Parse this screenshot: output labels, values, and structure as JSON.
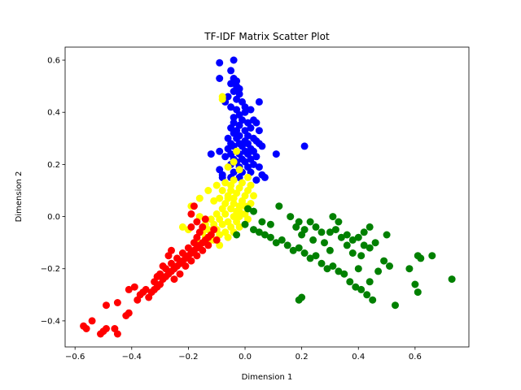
{
  "chart_data": {
    "type": "scatter",
    "title": "TF-IDF Matrix Scatter Plot",
    "xlabel": "Dimension 1",
    "ylabel": "Dimension 2",
    "xlim": [
      -0.635,
      0.79
    ],
    "ylim": [
      -0.5,
      0.65
    ],
    "xticks": [
      -0.6,
      -0.4,
      -0.2,
      0.0,
      0.2,
      0.4,
      0.6
    ],
    "xtick_labels": [
      "−0.6",
      "−0.4",
      "−0.2",
      "0.0",
      "0.2",
      "0.4",
      "0.6"
    ],
    "yticks": [
      -0.4,
      -0.2,
      0.0,
      0.2,
      0.4,
      0.6
    ],
    "ytick_labels": [
      "−0.4",
      "−0.2",
      "0.0",
      "0.2",
      "0.4",
      "0.6"
    ],
    "grid": false,
    "legend": "none",
    "series": [
      {
        "color": "#0000ff",
        "points": [
          [
            -0.09,
            0.59
          ],
          [
            -0.04,
            0.6
          ],
          [
            -0.09,
            0.53
          ],
          [
            -0.05,
            0.56
          ],
          [
            -0.04,
            0.53
          ],
          [
            -0.03,
            0.52
          ],
          [
            -0.05,
            0.51
          ],
          [
            -0.03,
            0.5
          ],
          [
            -0.04,
            0.48
          ],
          [
            -0.02,
            0.49
          ],
          [
            -0.06,
            0.46
          ],
          [
            -0.03,
            0.45
          ],
          [
            -0.02,
            0.47
          ],
          [
            -0.01,
            0.44
          ],
          [
            -0.07,
            0.44
          ],
          [
            -0.05,
            0.42
          ],
          [
            -0.03,
            0.41
          ],
          [
            0.0,
            0.42
          ],
          [
            -0.02,
            0.39
          ],
          [
            -0.04,
            0.38
          ],
          [
            0.05,
            0.44
          ],
          [
            0.0,
            0.4
          ],
          [
            -0.01,
            0.37
          ],
          [
            -0.04,
            0.36
          ],
          [
            -0.02,
            0.35
          ],
          [
            0.01,
            0.36
          ],
          [
            -0.05,
            0.34
          ],
          [
            -0.03,
            0.33
          ],
          [
            0.0,
            0.33
          ],
          [
            0.02,
            0.34
          ],
          [
            -0.04,
            0.32
          ],
          [
            -0.02,
            0.31
          ],
          [
            0.01,
            0.31
          ],
          [
            0.04,
            0.36
          ],
          [
            0.05,
            0.33
          ],
          [
            -0.06,
            0.3
          ],
          [
            -0.03,
            0.3
          ],
          [
            0.0,
            0.29
          ],
          [
            0.03,
            0.3
          ],
          [
            -0.05,
            0.28
          ],
          [
            -0.02,
            0.28
          ],
          [
            0.01,
            0.28
          ],
          [
            0.04,
            0.29
          ],
          [
            -0.04,
            0.27
          ],
          [
            -0.01,
            0.27
          ],
          [
            0.02,
            0.26
          ],
          [
            -0.06,
            0.26
          ],
          [
            -0.03,
            0.25
          ],
          [
            0.0,
            0.25
          ],
          [
            0.03,
            0.25
          ],
          [
            0.05,
            0.28
          ],
          [
            0.06,
            0.27
          ],
          [
            -0.05,
            0.24
          ],
          [
            -0.02,
            0.24
          ],
          [
            0.01,
            0.24
          ],
          [
            -0.07,
            0.23
          ],
          [
            -0.04,
            0.22
          ],
          [
            -0.01,
            0.22
          ],
          [
            0.02,
            0.22
          ],
          [
            0.04,
            0.23
          ],
          [
            -0.12,
            0.24
          ],
          [
            -0.09,
            0.25
          ],
          [
            -0.03,
            0.21
          ],
          [
            0.0,
            0.21
          ],
          [
            0.03,
            0.2
          ],
          [
            -0.05,
            0.2
          ],
          [
            -0.02,
            0.19
          ],
          [
            0.01,
            0.19
          ],
          [
            0.05,
            0.19
          ],
          [
            -0.09,
            0.18
          ],
          [
            -0.08,
            0.16
          ],
          [
            -0.04,
            0.17
          ],
          [
            -0.01,
            0.17
          ],
          [
            0.02,
            0.17
          ],
          [
            0.06,
            0.16
          ],
          [
            0.07,
            0.15
          ],
          [
            -0.08,
            0.15
          ],
          [
            -0.05,
            0.15
          ],
          [
            -0.02,
            0.15
          ],
          [
            0.04,
            0.14
          ],
          [
            0.11,
            0.24
          ],
          [
            0.21,
            0.27
          ],
          [
            0.03,
            0.37
          ],
          [
            0.02,
            0.41
          ]
        ]
      },
      {
        "color": "#ffff00",
        "points": [
          [
            -0.08,
            0.45
          ],
          [
            -0.08,
            0.46
          ],
          [
            -0.03,
            0.25
          ],
          [
            -0.04,
            0.21
          ],
          [
            -0.06,
            0.19
          ],
          [
            -0.02,
            0.18
          ],
          [
            0.01,
            0.15
          ],
          [
            -0.04,
            0.14
          ],
          [
            -0.07,
            0.13
          ],
          [
            -0.01,
            0.13
          ],
          [
            0.02,
            0.12
          ],
          [
            -0.05,
            0.12
          ],
          [
            -0.1,
            0.12
          ],
          [
            -0.02,
            0.11
          ],
          [
            0.01,
            0.1
          ],
          [
            -0.05,
            0.1
          ],
          [
            -0.08,
            0.1
          ],
          [
            -0.13,
            0.1
          ],
          [
            -0.03,
            0.09
          ],
          [
            0.0,
            0.08
          ],
          [
            -0.06,
            0.08
          ],
          [
            0.03,
            0.08
          ],
          [
            -0.09,
            0.07
          ],
          [
            -0.04,
            0.07
          ],
          [
            -0.01,
            0.06
          ],
          [
            0.02,
            0.05
          ],
          [
            -0.07,
            0.05
          ],
          [
            -0.11,
            0.06
          ],
          [
            -0.04,
            0.05
          ],
          [
            -0.02,
            0.04
          ],
          [
            0.01,
            0.03
          ],
          [
            -0.08,
            0.03
          ],
          [
            -0.05,
            0.03
          ],
          [
            -0.03,
            0.02
          ],
          [
            0.0,
            0.01
          ],
          [
            -0.1,
            0.01
          ],
          [
            -0.07,
            0.01
          ],
          [
            -0.04,
            0.0
          ],
          [
            -0.02,
            0.0
          ],
          [
            0.01,
            -0.01
          ],
          [
            -0.12,
            -0.01
          ],
          [
            -0.09,
            -0.01
          ],
          [
            -0.06,
            -0.02
          ],
          [
            -0.03,
            -0.02
          ],
          [
            -0.14,
            -0.03
          ],
          [
            -0.11,
            -0.03
          ],
          [
            -0.08,
            -0.03
          ],
          [
            -0.05,
            -0.04
          ],
          [
            -0.02,
            -0.04
          ],
          [
            -0.13,
            -0.05
          ],
          [
            -0.1,
            -0.05
          ],
          [
            -0.07,
            -0.06
          ],
          [
            -0.04,
            -0.06
          ],
          [
            -0.15,
            -0.06
          ],
          [
            -0.12,
            -0.07
          ],
          [
            -0.09,
            -0.07
          ],
          [
            -0.06,
            -0.08
          ],
          [
            -0.14,
            -0.08
          ],
          [
            -0.11,
            -0.09
          ],
          [
            -0.17,
            -0.09
          ],
          [
            -0.13,
            -0.1
          ],
          [
            -0.09,
            -0.11
          ],
          [
            -0.16,
            -0.11
          ],
          [
            -0.15,
            -0.05
          ],
          [
            -0.16,
            0.07
          ],
          [
            -0.19,
            0.04
          ],
          [
            -0.2,
            -0.05
          ],
          [
            -0.22,
            -0.04
          ],
          [
            -0.16,
            0.0
          ],
          [
            -0.06,
            0.07
          ],
          [
            -0.02,
            0.02
          ],
          [
            0.0,
            0.04
          ]
        ]
      },
      {
        "color": "#ff0000",
        "points": [
          [
            -0.57,
            -0.42
          ],
          [
            -0.56,
            -0.43
          ],
          [
            -0.54,
            -0.4
          ],
          [
            -0.51,
            -0.45
          ],
          [
            -0.5,
            -0.44
          ],
          [
            -0.49,
            -0.43
          ],
          [
            -0.46,
            -0.43
          ],
          [
            -0.45,
            -0.45
          ],
          [
            -0.49,
            -0.34
          ],
          [
            -0.45,
            -0.33
          ],
          [
            -0.42,
            -0.38
          ],
          [
            -0.41,
            -0.37
          ],
          [
            -0.41,
            -0.28
          ],
          [
            -0.39,
            -0.27
          ],
          [
            -0.38,
            -0.32
          ],
          [
            -0.37,
            -0.3
          ],
          [
            -0.36,
            -0.29
          ],
          [
            -0.34,
            -0.31
          ],
          [
            -0.33,
            -0.29
          ],
          [
            -0.32,
            -0.28
          ],
          [
            -0.31,
            -0.27
          ],
          [
            -0.3,
            -0.26
          ],
          [
            -0.32,
            -0.25
          ],
          [
            -0.29,
            -0.24
          ],
          [
            -0.28,
            -0.23
          ],
          [
            -0.3,
            -0.22
          ],
          [
            -0.27,
            -0.22
          ],
          [
            -0.26,
            -0.21
          ],
          [
            -0.28,
            -0.2
          ],
          [
            -0.25,
            -0.2
          ],
          [
            -0.24,
            -0.19
          ],
          [
            -0.26,
            -0.18
          ],
          [
            -0.23,
            -0.18
          ],
          [
            -0.22,
            -0.17
          ],
          [
            -0.24,
            -0.16
          ],
          [
            -0.21,
            -0.16
          ],
          [
            -0.2,
            -0.15
          ],
          [
            -0.22,
            -0.14
          ],
          [
            -0.19,
            -0.14
          ],
          [
            -0.18,
            -0.13
          ],
          [
            -0.2,
            -0.12
          ],
          [
            -0.17,
            -0.12
          ],
          [
            -0.16,
            -0.11
          ],
          [
            -0.18,
            -0.1
          ],
          [
            -0.15,
            -0.1
          ],
          [
            -0.14,
            -0.09
          ],
          [
            -0.17,
            -0.08
          ],
          [
            -0.13,
            -0.08
          ],
          [
            -0.12,
            -0.07
          ],
          [
            -0.16,
            -0.06
          ],
          [
            -0.15,
            -0.04
          ],
          [
            -0.19,
            -0.04
          ],
          [
            -0.17,
            -0.02
          ],
          [
            -0.19,
            0.01
          ],
          [
            -0.14,
            -0.01
          ],
          [
            -0.11,
            -0.05
          ],
          [
            -0.18,
            0.04
          ],
          [
            -0.26,
            -0.13
          ],
          [
            -0.27,
            -0.15
          ],
          [
            -0.29,
            -0.19
          ],
          [
            -0.31,
            -0.23
          ],
          [
            -0.35,
            -0.28
          ],
          [
            -0.25,
            -0.24
          ],
          [
            -0.23,
            -0.22
          ],
          [
            -0.21,
            -0.19
          ],
          [
            -0.19,
            -0.17
          ],
          [
            -0.17,
            -0.15
          ],
          [
            -0.15,
            -0.13
          ],
          [
            -0.13,
            -0.11
          ],
          [
            -0.1,
            -0.09
          ]
        ]
      },
      {
        "color": "#008000",
        "points": [
          [
            0.01,
            0.03
          ],
          [
            0.03,
            0.02
          ],
          [
            0.12,
            0.04
          ],
          [
            0.16,
            0.0
          ],
          [
            0.19,
            -0.02
          ],
          [
            0.23,
            -0.02
          ],
          [
            0.21,
            -0.05
          ],
          [
            0.25,
            -0.04
          ],
          [
            0.27,
            -0.06
          ],
          [
            0.3,
            -0.06
          ],
          [
            0.32,
            -0.05
          ],
          [
            0.33,
            -0.02
          ],
          [
            0.31,
            0.0
          ],
          [
            0.36,
            -0.07
          ],
          [
            0.34,
            -0.08
          ],
          [
            0.38,
            -0.09
          ],
          [
            0.4,
            -0.08
          ],
          [
            0.42,
            -0.06
          ],
          [
            0.42,
            -0.11
          ],
          [
            0.44,
            -0.12
          ],
          [
            0.46,
            -0.1
          ],
          [
            0.5,
            -0.07
          ],
          [
            0.44,
            -0.04
          ],
          [
            0.03,
            -0.05
          ],
          [
            0.05,
            -0.06
          ],
          [
            0.07,
            -0.07
          ],
          [
            0.09,
            -0.08
          ],
          [
            0.11,
            -0.1
          ],
          [
            0.13,
            -0.09
          ],
          [
            0.15,
            -0.11
          ],
          [
            0.17,
            -0.13
          ],
          [
            0.19,
            -0.12
          ],
          [
            0.21,
            -0.14
          ],
          [
            0.23,
            -0.16
          ],
          [
            0.25,
            -0.15
          ],
          [
            0.27,
            -0.18
          ],
          [
            0.29,
            -0.2
          ],
          [
            0.31,
            -0.19
          ],
          [
            0.33,
            -0.21
          ],
          [
            0.35,
            -0.22
          ],
          [
            0.37,
            -0.25
          ],
          [
            0.39,
            -0.27
          ],
          [
            0.41,
            -0.28
          ],
          [
            0.43,
            -0.3
          ],
          [
            0.45,
            -0.32
          ],
          [
            0.44,
            -0.25
          ],
          [
            0.47,
            -0.21
          ],
          [
            0.49,
            -0.17
          ],
          [
            0.51,
            -0.19
          ],
          [
            0.53,
            -0.34
          ],
          [
            0.58,
            -0.2
          ],
          [
            0.61,
            -0.15
          ],
          [
            0.62,
            -0.16
          ],
          [
            0.66,
            -0.15
          ],
          [
            0.6,
            -0.26
          ],
          [
            0.61,
            -0.29
          ],
          [
            0.73,
            -0.24
          ],
          [
            0.4,
            -0.2
          ],
          [
            0.38,
            -0.14
          ],
          [
            0.36,
            -0.11
          ],
          [
            0.3,
            -0.13
          ],
          [
            0.28,
            -0.1
          ],
          [
            0.24,
            -0.09
          ],
          [
            0.2,
            -0.07
          ],
          [
            0.18,
            -0.04
          ],
          [
            0.2,
            -0.31
          ],
          [
            0.19,
            -0.32
          ],
          [
            0.41,
            -0.15
          ],
          [
            0.09,
            -0.03
          ],
          [
            0.06,
            -0.02
          ],
          [
            -0.03,
            -0.07
          ],
          [
            0.0,
            -0.03
          ]
        ]
      }
    ]
  }
}
